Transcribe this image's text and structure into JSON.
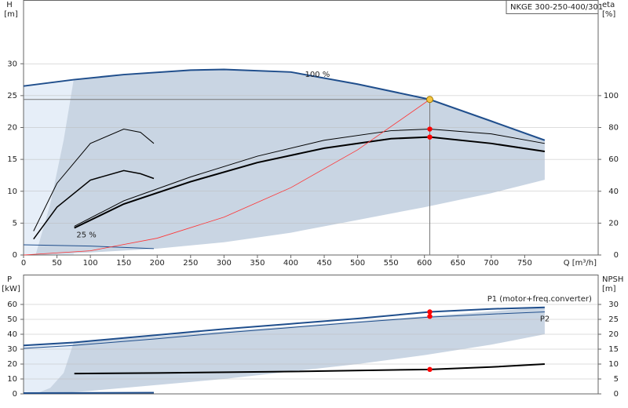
{
  "chart_data": [
    {
      "type": "line",
      "title": "NKGE 300-250-400/301",
      "ylabel": "H",
      "yunit": "[m]",
      "y2label": "eta",
      "y2unit": "[%]",
      "xlabel": "Q [m³/h]",
      "xlim": [
        0,
        860
      ],
      "ylim": [
        0,
        40
      ],
      "y2lim": [
        0,
        160
      ],
      "xticks": [
        0,
        50,
        100,
        150,
        200,
        250,
        300,
        350,
        400,
        450,
        500,
        550,
        600,
        650,
        700,
        750
      ],
      "yticks": [
        0,
        5,
        10,
        15,
        20,
        25,
        30
      ],
      "y2ticks": [
        0,
        20,
        40,
        60,
        80,
        100
      ],
      "grid": true,
      "areas": [
        {
          "color": "#e6eef8",
          "x": [
            0,
            75,
            75,
            0
          ],
          "values": [
            26.5,
            27.5,
            0,
            0
          ]
        },
        {
          "color": "#c9d5e3",
          "x": [
            18,
            40,
            60,
            75,
            150,
            250,
            300,
            400,
            500,
            608,
            700,
            780,
            780,
            700,
            600,
            500,
            400,
            300,
            200,
            100,
            18
          ],
          "values": [
            0,
            8,
            18,
            27.5,
            28.3,
            29,
            29.1,
            28.7,
            26.8,
            24.4,
            21,
            18,
            11.8,
            9.7,
            7.5,
            5.5,
            3.5,
            2,
            1,
            0.4,
            0
          ]
        }
      ],
      "series": [
        {
          "name": "100 %",
          "color": "#1f4e8c",
          "width": 2,
          "x": [
            0,
            75,
            150,
            250,
            300,
            400,
            500,
            608,
            700,
            780
          ],
          "values": [
            26.5,
            27.5,
            28.3,
            29,
            29.1,
            28.7,
            26.8,
            24.4,
            21,
            18
          ]
        },
        {
          "name": "25 %",
          "color": "#1f4e8c",
          "width": 1,
          "x": [
            0,
            100,
            195
          ],
          "values": [
            1.6,
            1.4,
            1.0
          ]
        },
        {
          "color": "#000000",
          "width": 2,
          "axis": "y2",
          "x": [
            76,
            150,
            250,
            350,
            450,
            550,
            608,
            700,
            780
          ],
          "values": [
            17,
            32,
            46,
            58,
            67,
            73,
            74,
            70,
            65
          ]
        },
        {
          "color": "#000000",
          "width": 1,
          "axis": "y2",
          "x": [
            76,
            150,
            250,
            350,
            450,
            550,
            608,
            700,
            780
          ],
          "values": [
            18,
            34,
            49,
            62,
            72,
            78,
            79,
            76,
            70
          ]
        },
        {
          "color": "#000000",
          "width": 1,
          "axis": "y2",
          "x": [
            15,
            50,
            100,
            150,
            175,
            195
          ],
          "values": [
            15,
            45,
            70,
            79,
            77,
            70
          ]
        },
        {
          "color": "#000000",
          "width": 1.5,
          "axis": "y2",
          "x": [
            15,
            50,
            100,
            150,
            175,
            195
          ],
          "values": [
            10,
            30,
            47,
            53,
            51,
            48
          ]
        },
        {
          "color": "#ff3333",
          "width": 0.8,
          "x": [
            0,
            100,
            200,
            300,
            400,
            500,
            608
          ],
          "values": [
            0,
            0.66,
            2.64,
            5.94,
            10.56,
            16.5,
            24.4
          ]
        }
      ],
      "points": [
        {
          "x": 608,
          "y": 24.4,
          "color": "#f5c542"
        },
        {
          "x": 608,
          "y": 79,
          "axis": "y2",
          "color": "#ff0000"
        },
        {
          "x": 608,
          "y": 74,
          "axis": "y2",
          "color": "#ff0000"
        }
      ]
    },
    {
      "type": "line",
      "ylabel": "P",
      "yunit": "[kW]",
      "y2label": "NPSH",
      "y2unit": "[m]",
      "xlim": [
        0,
        860
      ],
      "ylim": [
        0,
        80
      ],
      "y2lim": [
        0,
        40
      ],
      "yticks": [
        0,
        10,
        20,
        30,
        40,
        50,
        60
      ],
      "y2ticks": [
        0,
        5,
        10,
        15,
        20,
        25,
        30
      ],
      "grid": true,
      "areas": [
        {
          "color": "#e6eef8",
          "x": [
            0,
            75,
            75,
            0
          ],
          "values": [
            32.5,
            34.5,
            0,
            0
          ]
        },
        {
          "color": "#c9d5e3",
          "x": [
            18,
            40,
            60,
            75,
            780,
            780,
            700,
            600,
            500,
            400,
            300,
            200,
            100,
            40
          ],
          "values": [
            0,
            4,
            14,
            34.5,
            58,
            40,
            33,
            26,
            20,
            15,
            10,
            6,
            2,
            0
          ]
        }
      ],
      "series": [
        {
          "name": "P1 (motor+freq.converter)",
          "color": "#1f4e8c",
          "width": 2,
          "x": [
            0,
            75,
            200,
            300,
            400,
            500,
            608,
            700,
            780
          ],
          "values": [
            32.5,
            34.5,
            39.5,
            43.5,
            47,
            50.5,
            55,
            57,
            58
          ]
        },
        {
          "name": "P2",
          "color": "#1f4e8c",
          "width": 1,
          "x": [
            0,
            75,
            200,
            300,
            400,
            500,
            608,
            700,
            780
          ],
          "values": [
            30.5,
            32.5,
            37,
            41,
            44.5,
            48,
            51.5,
            53.5,
            55
          ]
        },
        {
          "color": "#000000",
          "width": 2,
          "axis": "y2",
          "x": [
            76,
            200,
            400,
            608,
            700,
            780
          ],
          "values": [
            6.8,
            7,
            7.5,
            8.2,
            9,
            10
          ]
        },
        {
          "color": "#1f4e8c",
          "width": 2,
          "x": [
            0,
            195
          ],
          "values": [
            0.5,
            0.8
          ]
        }
      ],
      "points": [
        {
          "x": 608,
          "y": 55,
          "color": "#ff0000"
        },
        {
          "x": 608,
          "y": 52,
          "color": "#ff0000"
        },
        {
          "x": 608,
          "y": 8.2,
          "axis": "y2",
          "color": "#ff0000"
        }
      ]
    }
  ]
}
